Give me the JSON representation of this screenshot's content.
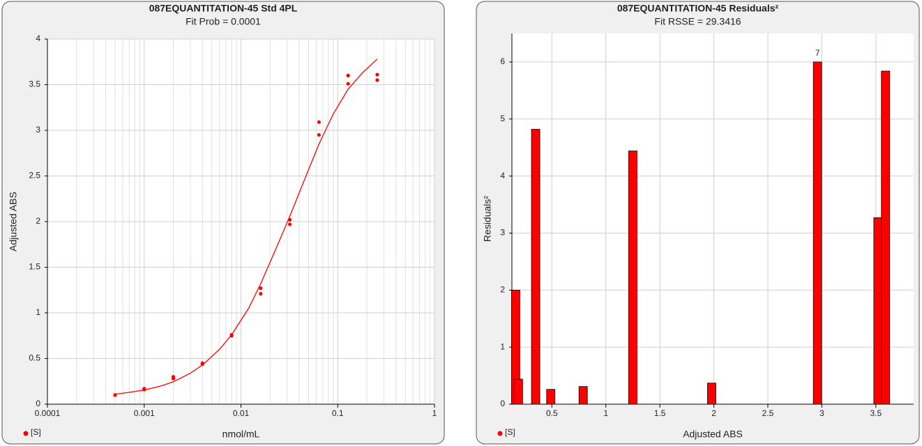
{
  "chart_data": [
    {
      "type": "scatter",
      "title": "087EQUANTITATION-45  Std 4PL",
      "subtitle": "Fit Prob = 0.0001",
      "x_label": "nmol/mL",
      "y_label": "Adjusted ABS",
      "x_scale": "log",
      "grid": true,
      "xlim": [
        0.0001,
        1
      ],
      "xticks": [
        0.0001,
        0.001,
        0.01,
        0.1,
        1
      ],
      "xminorticks": [
        0.0002,
        0.0003,
        0.0004,
        0.0005,
        0.0006,
        0.0007,
        0.0008,
        0.0009,
        0.002,
        0.003,
        0.004,
        0.005,
        0.006,
        0.007,
        0.008,
        0.009,
        0.02,
        0.03,
        0.04,
        0.05,
        0.06,
        0.07,
        0.08,
        0.09,
        0.2,
        0.3,
        0.4,
        0.5,
        0.6,
        0.7,
        0.8,
        0.9
      ],
      "ylim": [
        0,
        4
      ],
      "yticks": [
        0,
        0.5,
        1,
        1.5,
        2,
        2.5,
        3,
        3.5,
        4
      ],
      "series": [
        {
          "name": "[S]",
          "color": "#ff0000",
          "x": [
            0.0005,
            0.001,
            0.001,
            0.002,
            0.002,
            0.004,
            0.004,
            0.008,
            0.008,
            0.016,
            0.016,
            0.032,
            0.032,
            0.064,
            0.064,
            0.128,
            0.128,
            0.256,
            0.256
          ],
          "values": [
            0.1,
            0.16,
            0.17,
            0.28,
            0.3,
            0.44,
            0.45,
            0.75,
            0.76,
            1.21,
            1.27,
            1.97,
            2.02,
            2.95,
            3.09,
            3.51,
            3.6,
            3.55,
            3.61
          ]
        }
      ],
      "fit_curve": {
        "color": "#ff0000",
        "x": [
          0.0005,
          0.0007,
          0.001,
          0.0015,
          0.002,
          0.003,
          0.004,
          0.006,
          0.008,
          0.012,
          0.016,
          0.024,
          0.032,
          0.045,
          0.064,
          0.09,
          0.128,
          0.18,
          0.256
        ],
        "values": [
          0.11,
          0.13,
          0.155,
          0.2,
          0.245,
          0.34,
          0.43,
          0.6,
          0.76,
          1.05,
          1.32,
          1.75,
          2.06,
          2.45,
          2.85,
          3.18,
          3.45,
          3.63,
          3.78
        ]
      }
    },
    {
      "type": "bar",
      "title": "087EQUANTITATION-45 Residuals²",
      "subtitle": "Fit RSSE = 29.3416",
      "x_label": "Adjusted ABS",
      "y_label": "Residuals²",
      "grid": true,
      "xlim": [
        0.13,
        3.85
      ],
      "xticks": [
        0.5,
        1,
        1.5,
        2,
        2.5,
        3,
        3.5
      ],
      "ylim": [
        0,
        6.5
      ],
      "yticks": [
        0,
        1,
        2,
        3,
        4,
        5,
        6
      ],
      "series": [
        {
          "name": "[S]",
          "color": "#ff0000",
          "x": [
            0.165,
            0.19,
            0.35,
            0.49,
            0.79,
            1.25,
            1.98,
            2.96,
            3.52,
            3.59
          ],
          "values": [
            2.0,
            0.44,
            4.82,
            0.26,
            0.31,
            4.44,
            0.37,
            6.0,
            3.27,
            5.84
          ],
          "point_labels": [
            null,
            null,
            null,
            null,
            null,
            null,
            null,
            "7",
            null,
            null
          ]
        }
      ]
    }
  ]
}
